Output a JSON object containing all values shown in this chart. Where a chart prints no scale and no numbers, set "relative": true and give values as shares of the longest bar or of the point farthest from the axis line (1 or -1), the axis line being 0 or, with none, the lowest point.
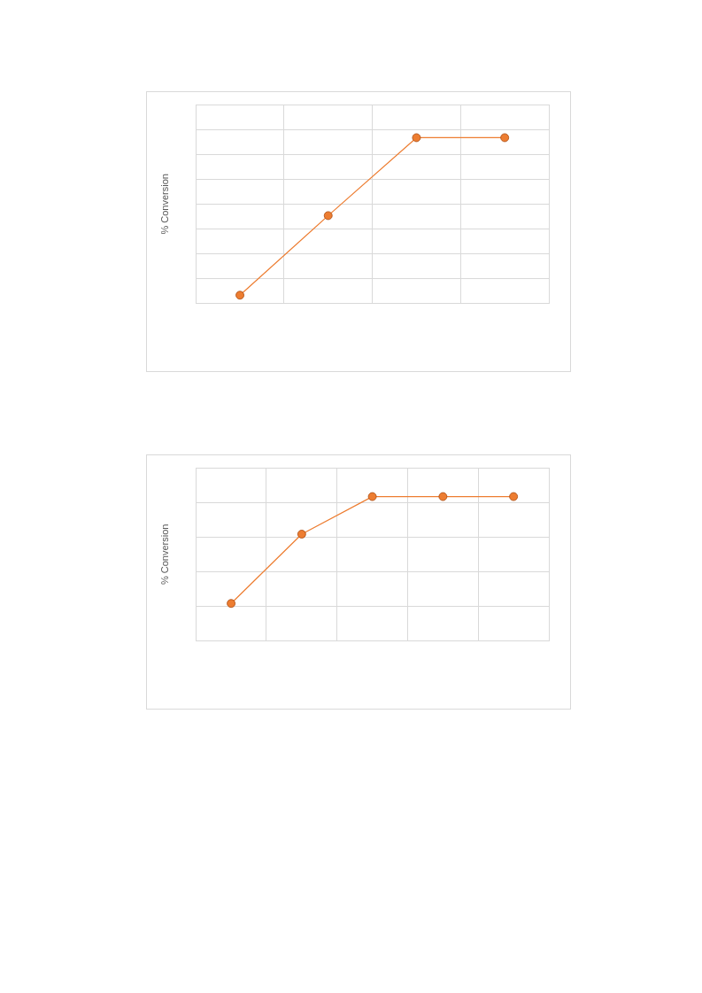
{
  "chart_data": [
    {
      "type": "line",
      "ylabel": "% Conversion",
      "relative": true,
      "categories": [
        null,
        null,
        null,
        null
      ],
      "series": [
        {
          "color": "#ed7d31",
          "values": [
            0.05,
            0.53,
            1,
            1
          ]
        }
      ],
      "grid": true,
      "legend": false,
      "marker": "circle",
      "line_style": "solid"
    },
    {
      "type": "line",
      "ylabel": "% Conversion",
      "relative": true,
      "categories": [
        null,
        null,
        null,
        null,
        null
      ],
      "series": [
        {
          "color": "#ed7d31",
          "values": [
            0.26,
            0.74,
            1,
            1,
            1
          ]
        }
      ],
      "grid": true,
      "legend": false,
      "marker": "circle",
      "line_style": "solid"
    }
  ]
}
